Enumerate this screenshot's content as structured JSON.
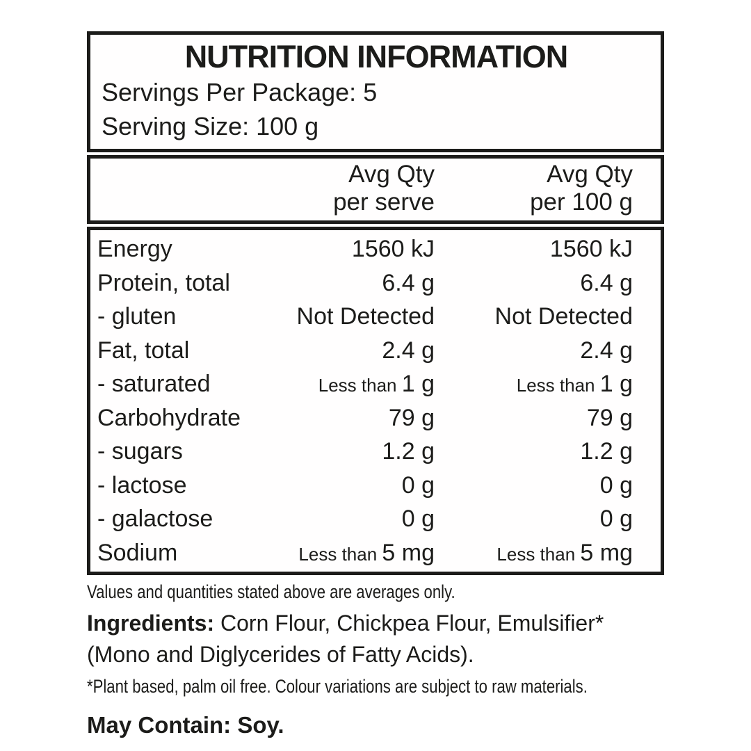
{
  "label": {
    "title": "NUTRITION INFORMATION",
    "servings_per_package": "Servings Per Package: 5",
    "serving_size": "Serving Size: 100 g",
    "header": {
      "serve_line1": "Avg Qty",
      "serve_line2": "per serve",
      "per100_line1": "Avg Qty",
      "per100_line2": "per 100 g"
    },
    "rows": [
      {
        "name": "Energy",
        "serve_prefix": "",
        "serve": "1560 kJ",
        "per100_prefix": "",
        "per100": "1560 kJ"
      },
      {
        "name": "Protein, total",
        "serve_prefix": "",
        "serve": "6.4 g",
        "per100_prefix": "",
        "per100": "6.4 g"
      },
      {
        "name": "- gluten",
        "serve_prefix": "",
        "serve": "Not Detected",
        "per100_prefix": "",
        "per100": "Not Detected"
      },
      {
        "name": "Fat, total",
        "serve_prefix": "",
        "serve": "2.4 g",
        "per100_prefix": "",
        "per100": "2.4 g"
      },
      {
        "name": "- saturated",
        "serve_prefix": "Less than ",
        "serve": "1 g",
        "per100_prefix": "Less than ",
        "per100": "1 g"
      },
      {
        "name": "Carbohydrate",
        "serve_prefix": "",
        "serve": "79 g",
        "per100_prefix": "",
        "per100": "79 g"
      },
      {
        "name": "- sugars",
        "serve_prefix": "",
        "serve": "1.2 g",
        "per100_prefix": "",
        "per100": "1.2 g"
      },
      {
        "name": "- lactose",
        "serve_prefix": "",
        "serve": "0 g",
        "per100_prefix": "",
        "per100": "0 g"
      },
      {
        "name": "- galactose",
        "serve_prefix": "",
        "serve": "0 g",
        "per100_prefix": "",
        "per100": "0 g"
      },
      {
        "name": "Sodium",
        "serve_prefix": "Less than ",
        "serve": "5 mg",
        "per100_prefix": "Less than ",
        "per100": "5 mg"
      }
    ],
    "notes": {
      "averages": "Values and quantities stated above are averages only.",
      "ingredients_label": "Ingredients:",
      "ingredients_text": " Corn Flour, Chickpea Flour, Emulsifier* (Mono and Diglycerides of Fatty Acids).",
      "footnote": "*Plant based, palm oil free. Colour variations are subject to raw materials.",
      "may_contain_label": "May Contain:",
      "may_contain_text": " Soy."
    },
    "colors": {
      "text": "#1c1c1a",
      "border": "#1c1c1a",
      "background": "#ffffff"
    }
  }
}
